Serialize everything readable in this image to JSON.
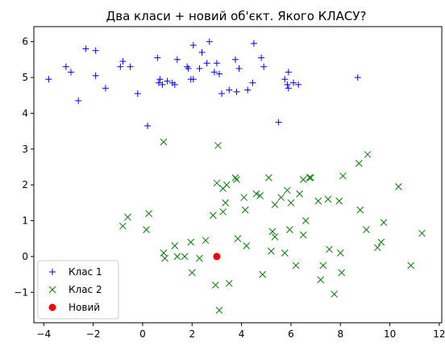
{
  "chart_data": {
    "type": "scatter",
    "title": "Два класи + новий об'єкт. Якого КЛАСУ?",
    "xlabel": "",
    "ylabel": "",
    "xlim": [
      -4.4,
      12.1
    ],
    "ylim": [
      -1.85,
      6.42
    ],
    "x_ticks": [
      -4,
      -2,
      0,
      2,
      4,
      6,
      8,
      10,
      12
    ],
    "y_ticks": [
      -1,
      0,
      1,
      2,
      3,
      4,
      5,
      6
    ],
    "grid": false,
    "legend_position": "lower-left",
    "series": [
      {
        "name": "Клас 1",
        "marker": "plus",
        "color": "#0000ff",
        "points": [
          [
            -3.8,
            4.95
          ],
          [
            -3.1,
            5.3
          ],
          [
            -2.9,
            5.15
          ],
          [
            -2.6,
            4.35
          ],
          [
            -2.3,
            5.8
          ],
          [
            -1.9,
            5.75
          ],
          [
            -1.9,
            5.05
          ],
          [
            -1.5,
            4.7
          ],
          [
            -0.9,
            5.3
          ],
          [
            -0.8,
            5.45
          ],
          [
            -0.5,
            5.3
          ],
          [
            -0.2,
            4.55
          ],
          [
            0.2,
            3.65
          ],
          [
            0.6,
            5.55
          ],
          [
            0.65,
            4.85
          ],
          [
            0.7,
            4.95
          ],
          [
            0.8,
            4.8
          ],
          [
            1.0,
            4.9
          ],
          [
            1.2,
            4.85
          ],
          [
            1.3,
            4.8
          ],
          [
            1.4,
            5.5
          ],
          [
            1.8,
            5.3
          ],
          [
            1.85,
            5.25
          ],
          [
            1.95,
            4.95
          ],
          [
            2.05,
            4.95
          ],
          [
            2.05,
            5.9
          ],
          [
            2.3,
            5.25
          ],
          [
            2.4,
            5.7
          ],
          [
            2.6,
            5.4
          ],
          [
            2.7,
            6.0
          ],
          [
            2.9,
            5.15
          ],
          [
            3.0,
            5.4
          ],
          [
            3.1,
            5.1
          ],
          [
            3.2,
            4.55
          ],
          [
            3.5,
            4.65
          ],
          [
            3.75,
            5.5
          ],
          [
            3.8,
            4.6
          ],
          [
            3.9,
            5.25
          ],
          [
            4.25,
            4.65
          ],
          [
            4.45,
            4.85
          ],
          [
            4.5,
            5.95
          ],
          [
            4.8,
            5.55
          ],
          [
            4.9,
            5.3
          ],
          [
            5.5,
            3.75
          ],
          [
            5.75,
            4.95
          ],
          [
            5.85,
            4.8
          ],
          [
            5.9,
            5.15
          ],
          [
            5.9,
            4.7
          ],
          [
            6.1,
            4.85
          ],
          [
            6.3,
            4.8
          ],
          [
            8.7,
            5.0
          ]
        ]
      },
      {
        "name": "Клас 2",
        "marker": "x",
        "color": "#008000",
        "points": [
          [
            -0.8,
            0.85
          ],
          [
            -0.6,
            1.1
          ],
          [
            0.15,
            0.75
          ],
          [
            0.25,
            1.2
          ],
          [
            0.85,
            3.2
          ],
          [
            0.85,
            0.1
          ],
          [
            0.9,
            -0.05
          ],
          [
            1.3,
            0.3
          ],
          [
            1.4,
            0.0
          ],
          [
            1.7,
            0.0
          ],
          [
            2.0,
            -0.45
          ],
          [
            1.95,
            0.4
          ],
          [
            2.3,
            -0.05
          ],
          [
            2.55,
            0.45
          ],
          [
            2.85,
            1.15
          ],
          [
            2.95,
            -0.8
          ],
          [
            3.0,
            2.05
          ],
          [
            3.05,
            3.1
          ],
          [
            3.1,
            -1.5
          ],
          [
            3.25,
            1.25
          ],
          [
            3.25,
            1.9
          ],
          [
            3.35,
            1.5
          ],
          [
            3.4,
            2.0
          ],
          [
            3.5,
            -0.75
          ],
          [
            3.75,
            2.2
          ],
          [
            3.8,
            2.15
          ],
          [
            3.85,
            0.5
          ],
          [
            4.1,
            1.65
          ],
          [
            4.15,
            1.3
          ],
          [
            4.2,
            0.3
          ],
          [
            4.6,
            1.75
          ],
          [
            4.75,
            1.7
          ],
          [
            4.85,
            -0.5
          ],
          [
            5.1,
            2.2
          ],
          [
            5.2,
            0.15
          ],
          [
            5.25,
            0.7
          ],
          [
            5.35,
            0.55
          ],
          [
            5.35,
            1.45
          ],
          [
            5.6,
            1.65
          ],
          [
            5.75,
            0.1
          ],
          [
            5.85,
            1.85
          ],
          [
            5.95,
            0.75
          ],
          [
            6.0,
            1.5
          ],
          [
            6.2,
            -0.25
          ],
          [
            6.35,
            1.75
          ],
          [
            6.5,
            2.15
          ],
          [
            6.5,
            0.6
          ],
          [
            6.6,
            1.0
          ],
          [
            6.75,
            2.2
          ],
          [
            6.8,
            2.2
          ],
          [
            7.1,
            1.55
          ],
          [
            7.2,
            -0.65
          ],
          [
            7.3,
            -0.25
          ],
          [
            7.5,
            1.6
          ],
          [
            7.55,
            0.2
          ],
          [
            7.75,
            -1.05
          ],
          [
            7.95,
            1.55
          ],
          [
            8.0,
            0.1
          ],
          [
            8.05,
            -0.45
          ],
          [
            8.1,
            2.25
          ],
          [
            8.75,
            2.6
          ],
          [
            8.8,
            1.3
          ],
          [
            9.05,
            0.75
          ],
          [
            9.1,
            2.85
          ],
          [
            9.5,
            0.25
          ],
          [
            9.65,
            0.4
          ],
          [
            9.75,
            0.95
          ],
          [
            10.35,
            1.95
          ],
          [
            10.85,
            -0.25
          ],
          [
            11.3,
            0.65
          ]
        ]
      },
      {
        "name": "Новий",
        "marker": "circle",
        "color": "#ff0000",
        "points": [
          [
            3.0,
            0.0
          ]
        ]
      }
    ]
  }
}
